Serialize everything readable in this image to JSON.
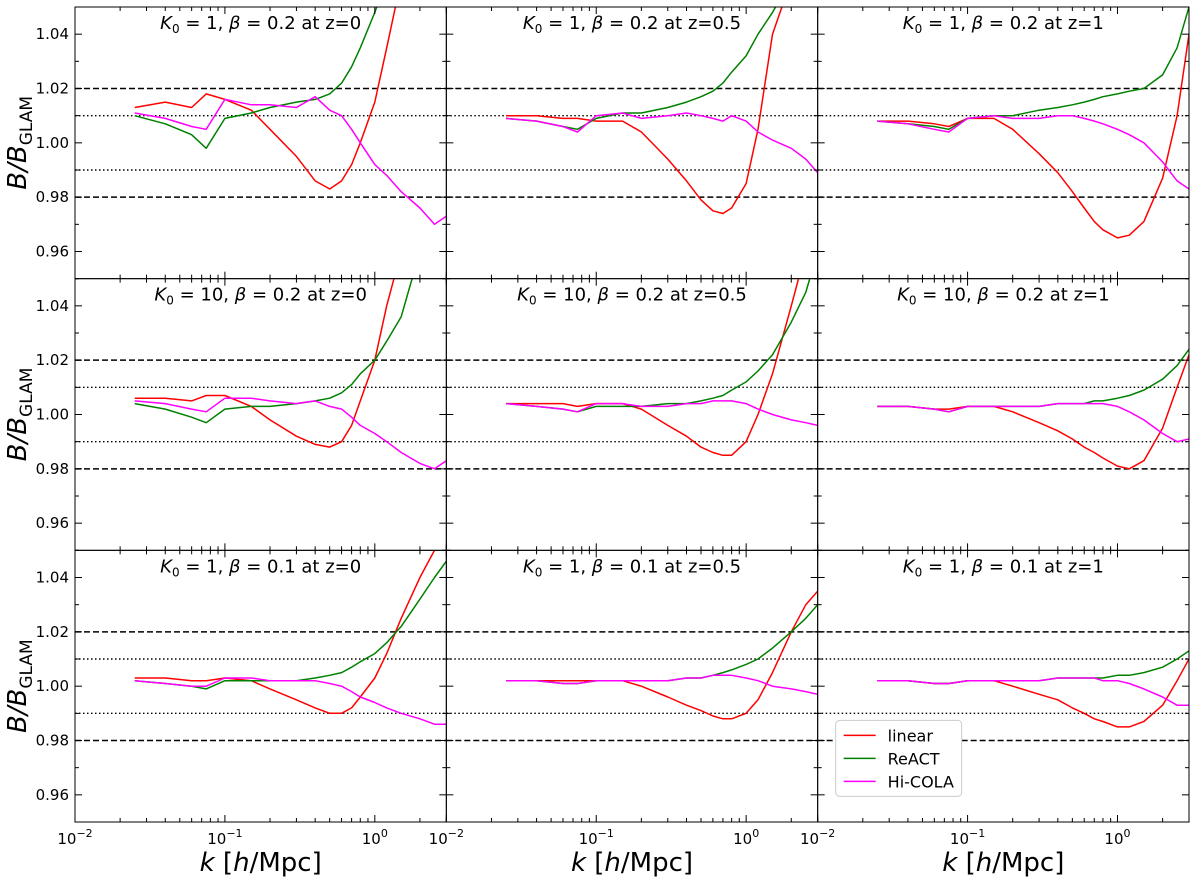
{
  "chart_data": {
    "type": "line",
    "layout": "3x3 grid of panels, shared axes",
    "xscale": "log",
    "xlim": [
      0.01,
      3.0
    ],
    "ylim": [
      0.95,
      1.05
    ],
    "x_ticks": [
      {
        "value": 0.01,
        "base": "10",
        "exp": "−2"
      },
      {
        "value": 0.1,
        "base": "10",
        "exp": "−1"
      },
      {
        "value": 1,
        "base": "10",
        "exp": "0"
      }
    ],
    "y_ticks": [
      {
        "value": 0.96,
        "label": "0.96"
      },
      {
        "value": 0.98,
        "label": "0.98"
      },
      {
        "value": 1.0,
        "label": "1.00"
      },
      {
        "value": 1.02,
        "label": "1.02"
      },
      {
        "value": 1.04,
        "label": "1.04"
      }
    ],
    "xlabel": {
      "pre": "k",
      "mid": " [",
      "h": "h",
      "post": "/Mpc]"
    },
    "ylabel": {
      "pre": "B/B",
      "sub": "GLAM"
    },
    "reference_lines": [
      {
        "y": 1.02,
        "style": "dashed"
      },
      {
        "y": 0.98,
        "style": "dashed"
      },
      {
        "y": 1.01,
        "style": "dotted"
      },
      {
        "y": 0.99,
        "style": "dotted"
      }
    ],
    "legend": {
      "position": "lower-left of bottom-right panel",
      "entries": [
        "linear",
        "ReACT",
        "Hi-COLA"
      ]
    },
    "colors": {
      "linear": "#ff0000",
      "ReACT": "#008000",
      "Hi-COLA": "#ff00ff"
    },
    "x": [
      0.025,
      0.04,
      0.06,
      0.075,
      0.1,
      0.15,
      0.2,
      0.3,
      0.4,
      0.5,
      0.6,
      0.7,
      0.8,
      1.0,
      1.2,
      1.5,
      2.0,
      2.5,
      3.0
    ],
    "panels": [
      {
        "title": {
          "k": "K",
          "k_sub": "0",
          "k_val": " = 1, ",
          "beta": "β",
          "b_val": " = 0.2 at z=0"
        },
        "series": [
          {
            "name": "linear",
            "values": [
              1.013,
              1.015,
              1.013,
              1.018,
              1.016,
              1.012,
              1.005,
              0.995,
              0.986,
              0.983,
              0.986,
              0.992,
              1.0,
              1.015,
              1.035,
              1.06,
              1.06,
              1.06,
              1.06
            ]
          },
          {
            "name": "ReACT",
            "values": [
              1.01,
              1.007,
              1.003,
              0.998,
              1.009,
              1.011,
              1.013,
              1.015,
              1.016,
              1.018,
              1.022,
              1.028,
              1.035,
              1.048,
              1.06,
              1.06,
              1.06,
              1.06,
              1.06
            ]
          },
          {
            "name": "Hi-COLA",
            "values": [
              1.011,
              1.009,
              1.006,
              1.005,
              1.016,
              1.014,
              1.014,
              1.013,
              1.017,
              1.012,
              1.01,
              1.005,
              1.0,
              0.992,
              0.988,
              0.982,
              0.976,
              0.97,
              0.973
            ]
          }
        ]
      },
      {
        "title": {
          "k": "K",
          "k_sub": "0",
          "k_val": " = 1, ",
          "beta": "β",
          "b_val": " = 0.2 at z=0.5"
        },
        "series": [
          {
            "name": "linear",
            "values": [
              1.01,
              1.01,
              1.009,
              1.009,
              1.008,
              1.008,
              1.004,
              0.994,
              0.986,
              0.979,
              0.975,
              0.974,
              0.976,
              0.985,
              1.005,
              1.04,
              1.06,
              1.06,
              1.06
            ]
          },
          {
            "name": "ReACT",
            "values": [
              1.009,
              1.008,
              1.006,
              1.005,
              1.009,
              1.011,
              1.011,
              1.013,
              1.015,
              1.017,
              1.019,
              1.022,
              1.026,
              1.032,
              1.04,
              1.048,
              1.06,
              1.06,
              1.06
            ]
          },
          {
            "name": "Hi-COLA",
            "values": [
              1.009,
              1.008,
              1.006,
              1.004,
              1.01,
              1.011,
              1.009,
              1.01,
              1.011,
              1.01,
              1.009,
              1.008,
              1.01,
              1.008,
              1.004,
              1.001,
              0.998,
              0.994,
              0.989
            ]
          }
        ]
      },
      {
        "title": {
          "k": "K",
          "k_sub": "0",
          "k_val": " = 1, ",
          "beta": "β",
          "b_val": " = 0.2 at z=1"
        },
        "series": [
          {
            "name": "linear",
            "values": [
              1.008,
              1.008,
              1.007,
              1.006,
              1.009,
              1.009,
              1.005,
              0.996,
              0.989,
              0.982,
              0.976,
              0.971,
              0.968,
              0.965,
              0.966,
              0.971,
              0.987,
              1.01,
              1.04
            ]
          },
          {
            "name": "ReACT",
            "values": [
              1.008,
              1.007,
              1.006,
              1.005,
              1.009,
              1.01,
              1.01,
              1.012,
              1.013,
              1.014,
              1.015,
              1.016,
              1.017,
              1.018,
              1.019,
              1.02,
              1.025,
              1.035,
              1.05
            ]
          },
          {
            "name": "Hi-COLA",
            "values": [
              1.008,
              1.007,
              1.005,
              1.004,
              1.009,
              1.01,
              1.009,
              1.009,
              1.01,
              1.01,
              1.009,
              1.008,
              1.007,
              1.005,
              1.003,
              1.0,
              0.993,
              0.986,
              0.983
            ]
          }
        ]
      },
      {
        "title": {
          "k": "K",
          "k_sub": "0",
          "k_val": " = 10, ",
          "beta": "β",
          "b_val": " = 0.2 at z=0"
        },
        "series": [
          {
            "name": "linear",
            "values": [
              1.006,
              1.006,
              1.005,
              1.007,
              1.007,
              1.003,
              0.998,
              0.992,
              0.989,
              0.988,
              0.99,
              0.996,
              1.005,
              1.02,
              1.04,
              1.06,
              1.06,
              1.06,
              1.06
            ]
          },
          {
            "name": "ReACT",
            "values": [
              1.004,
              1.002,
              0.999,
              0.997,
              1.002,
              1.003,
              1.003,
              1.004,
              1.005,
              1.006,
              1.008,
              1.011,
              1.015,
              1.02,
              1.027,
              1.036,
              1.06,
              1.06,
              1.06
            ]
          },
          {
            "name": "Hi-COLA",
            "values": [
              1.005,
              1.004,
              1.002,
              1.001,
              1.006,
              1.006,
              1.005,
              1.004,
              1.005,
              1.003,
              1.002,
              0.999,
              0.996,
              0.993,
              0.99,
              0.986,
              0.982,
              0.98,
              0.983
            ]
          }
        ]
      },
      {
        "title": {
          "k": "K",
          "k_sub": "0",
          "k_val": " = 10, ",
          "beta": "β",
          "b_val": " = 0.2 at z=0.5"
        },
        "series": [
          {
            "name": "linear",
            "values": [
              1.004,
              1.004,
              1.004,
              1.003,
              1.004,
              1.004,
              1.002,
              0.996,
              0.992,
              0.988,
              0.986,
              0.985,
              0.985,
              0.99,
              1.0,
              1.015,
              1.04,
              1.06,
              1.06
            ]
          },
          {
            "name": "ReACT",
            "values": [
              1.004,
              1.003,
              1.002,
              1.001,
              1.003,
              1.003,
              1.003,
              1.004,
              1.004,
              1.005,
              1.006,
              1.007,
              1.009,
              1.012,
              1.016,
              1.022,
              1.034,
              1.045,
              1.06
            ]
          },
          {
            "name": "Hi-COLA",
            "values": [
              1.004,
              1.003,
              1.002,
              1.001,
              1.004,
              1.004,
              1.003,
              1.003,
              1.004,
              1.004,
              1.005,
              1.005,
              1.005,
              1.004,
              1.002,
              1.0,
              0.998,
              0.997,
              0.996
            ]
          }
        ]
      },
      {
        "title": {
          "k": "K",
          "k_sub": "0",
          "k_val": " = 10, ",
          "beta": "β",
          "b_val": " = 0.2 at z=1"
        },
        "series": [
          {
            "name": "linear",
            "values": [
              1.003,
              1.003,
              1.002,
              1.002,
              1.003,
              1.003,
              1.001,
              0.997,
              0.994,
              0.991,
              0.988,
              0.986,
              0.984,
              0.981,
              0.98,
              0.983,
              0.995,
              1.01,
              1.022
            ]
          },
          {
            "name": "ReACT",
            "values": [
              1.003,
              1.003,
              1.002,
              1.001,
              1.003,
              1.003,
              1.003,
              1.003,
              1.004,
              1.004,
              1.004,
              1.005,
              1.005,
              1.006,
              1.007,
              1.009,
              1.013,
              1.018,
              1.024
            ]
          },
          {
            "name": "Hi-COLA",
            "values": [
              1.003,
              1.003,
              1.002,
              1.001,
              1.003,
              1.003,
              1.003,
              1.003,
              1.004,
              1.004,
              1.004,
              1.004,
              1.004,
              1.003,
              1.001,
              0.998,
              0.993,
              0.99,
              0.991
            ]
          }
        ]
      },
      {
        "title": {
          "k": "K",
          "k_sub": "0",
          "k_val": " = 1, ",
          "beta": "β",
          "b_val": " = 0.1 at z=0"
        },
        "series": [
          {
            "name": "linear",
            "values": [
              1.003,
              1.003,
              1.002,
              1.002,
              1.003,
              1.002,
              0.999,
              0.995,
              0.992,
              0.99,
              0.99,
              0.992,
              0.996,
              1.003,
              1.012,
              1.025,
              1.04,
              1.05,
              1.055
            ]
          },
          {
            "name": "ReACT",
            "values": [
              1.002,
              1.001,
              1.0,
              0.999,
              1.002,
              1.002,
              1.002,
              1.002,
              1.003,
              1.004,
              1.005,
              1.007,
              1.009,
              1.012,
              1.016,
              1.022,
              1.032,
              1.04,
              1.046
            ]
          },
          {
            "name": "Hi-COLA",
            "values": [
              1.002,
              1.001,
              1.0,
              1.0,
              1.003,
              1.003,
              1.002,
              1.002,
              1.002,
              1.001,
              1.0,
              0.998,
              0.996,
              0.994,
              0.992,
              0.99,
              0.988,
              0.986,
              0.986
            ]
          }
        ]
      },
      {
        "title": {
          "k": "K",
          "k_sub": "0",
          "k_val": " = 1, ",
          "beta": "β",
          "b_val": " = 0.1 at z=0.5"
        },
        "series": [
          {
            "name": "linear",
            "values": [
              1.002,
              1.002,
              1.002,
              1.002,
              1.002,
              1.002,
              1.0,
              0.996,
              0.993,
              0.991,
              0.989,
              0.988,
              0.988,
              0.99,
              0.995,
              1.005,
              1.02,
              1.03,
              1.035
            ]
          },
          {
            "name": "ReACT",
            "values": [
              1.002,
              1.002,
              1.001,
              1.001,
              1.002,
              1.002,
              1.002,
              1.002,
              1.003,
              1.003,
              1.004,
              1.005,
              1.006,
              1.008,
              1.01,
              1.014,
              1.02,
              1.025,
              1.03
            ]
          },
          {
            "name": "Hi-COLA",
            "values": [
              1.002,
              1.002,
              1.001,
              1.001,
              1.002,
              1.002,
              1.002,
              1.002,
              1.003,
              1.003,
              1.004,
              1.004,
              1.004,
              1.003,
              1.002,
              1.0,
              0.999,
              0.998,
              0.997
            ]
          }
        ]
      },
      {
        "title": {
          "k": "K",
          "k_sub": "0",
          "k_val": " = 1, ",
          "beta": "β",
          "b_val": " = 0.1 at z=1"
        },
        "series": [
          {
            "name": "linear",
            "values": [
              1.002,
              1.002,
              1.001,
              1.001,
              1.002,
              1.002,
              1.0,
              0.997,
              0.995,
              0.992,
              0.99,
              0.988,
              0.987,
              0.985,
              0.985,
              0.987,
              0.993,
              1.002,
              1.01
            ]
          },
          {
            "name": "ReACT",
            "values": [
              1.002,
              1.002,
              1.001,
              1.001,
              1.002,
              1.002,
              1.002,
              1.002,
              1.003,
              1.003,
              1.003,
              1.003,
              1.003,
              1.004,
              1.004,
              1.005,
              1.007,
              1.01,
              1.013
            ]
          },
          {
            "name": "Hi-COLA",
            "values": [
              1.002,
              1.002,
              1.001,
              1.001,
              1.002,
              1.002,
              1.002,
              1.002,
              1.003,
              1.003,
              1.003,
              1.003,
              1.002,
              1.002,
              1.001,
              0.999,
              0.996,
              0.993,
              0.993
            ]
          }
        ]
      }
    ]
  }
}
